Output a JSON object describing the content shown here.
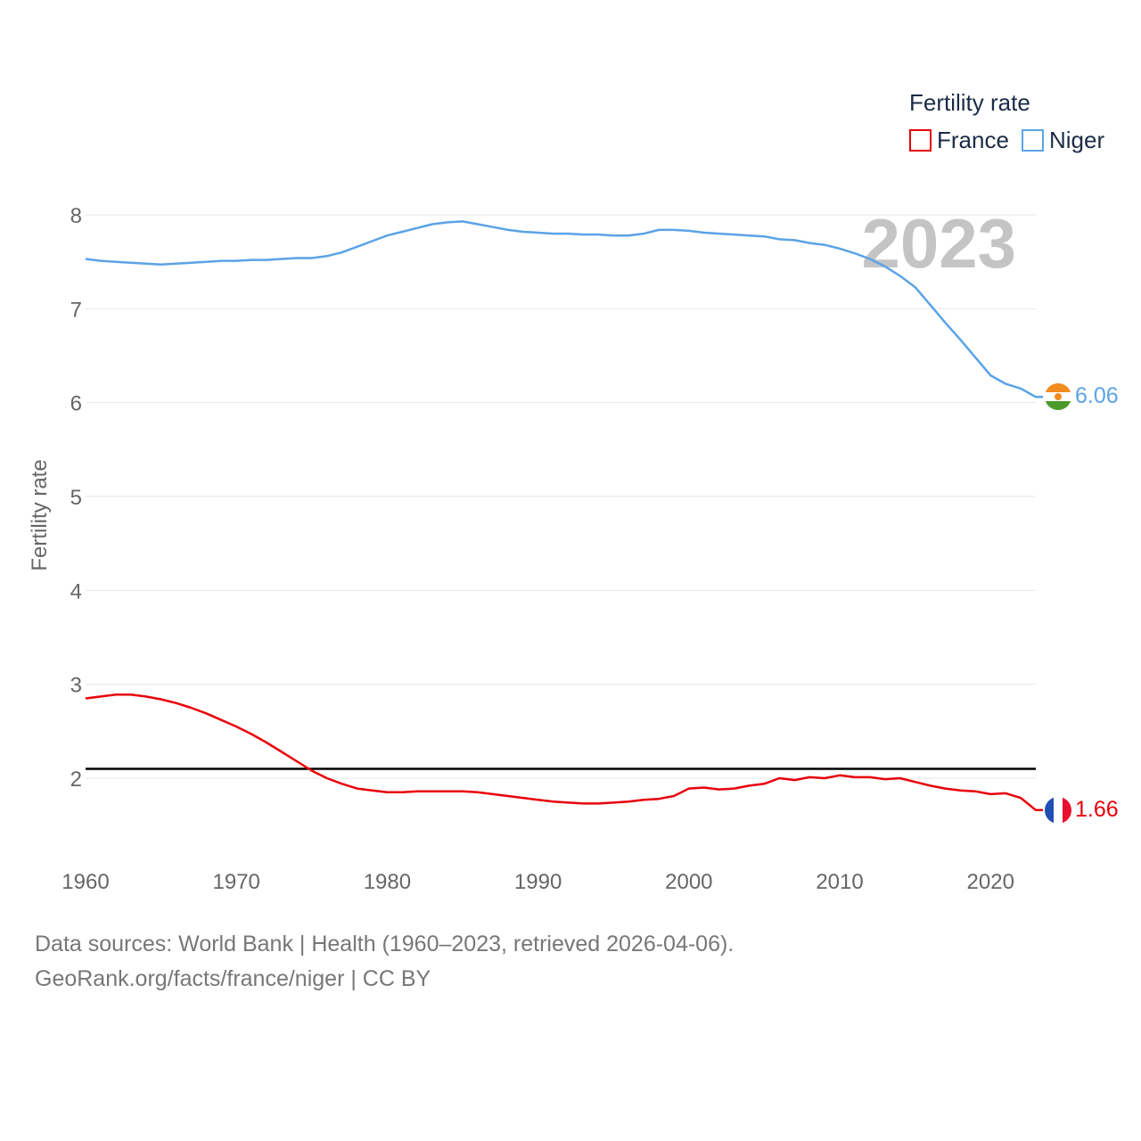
{
  "chart_data": {
    "type": "line",
    "title": "",
    "legend_title": "Fertility rate",
    "ylabel": "Fertility rate",
    "xlabel": "",
    "watermark_year": "2023",
    "x": [
      1960,
      1961,
      1962,
      1963,
      1964,
      1965,
      1966,
      1967,
      1968,
      1969,
      1970,
      1971,
      1972,
      1973,
      1974,
      1975,
      1976,
      1977,
      1978,
      1979,
      1980,
      1981,
      1982,
      1983,
      1984,
      1985,
      1986,
      1987,
      1988,
      1989,
      1990,
      1991,
      1992,
      1993,
      1994,
      1995,
      1996,
      1997,
      1998,
      1999,
      2000,
      2001,
      2002,
      2003,
      2004,
      2005,
      2006,
      2007,
      2008,
      2009,
      2010,
      2011,
      2012,
      2013,
      2014,
      2015,
      2016,
      2017,
      2018,
      2019,
      2020,
      2021,
      2022,
      2023
    ],
    "series": [
      {
        "name": "France",
        "color": "#e8000b",
        "end_label": "1.66",
        "flag": "france-flag",
        "values": [
          2.85,
          2.87,
          2.89,
          2.89,
          2.87,
          2.84,
          2.8,
          2.75,
          2.69,
          2.62,
          2.55,
          2.47,
          2.38,
          2.28,
          2.18,
          2.08,
          2.0,
          1.94,
          1.89,
          1.87,
          1.85,
          1.85,
          1.86,
          1.86,
          1.86,
          1.86,
          1.85,
          1.83,
          1.81,
          1.79,
          1.77,
          1.75,
          1.74,
          1.73,
          1.73,
          1.74,
          1.75,
          1.77,
          1.78,
          1.81,
          1.89,
          1.9,
          1.88,
          1.89,
          1.92,
          1.94,
          2.0,
          1.98,
          2.01,
          2.0,
          2.03,
          2.01,
          2.01,
          1.99,
          2.0,
          1.96,
          1.92,
          1.89,
          1.87,
          1.86,
          1.83,
          1.84,
          1.79,
          1.66
        ]
      },
      {
        "name": "Niger",
        "color": "#5ba3e6",
        "end_label": "6.06",
        "flag": "niger-flag",
        "values": [
          7.53,
          7.51,
          7.5,
          7.49,
          7.48,
          7.47,
          7.48,
          7.49,
          7.5,
          7.51,
          7.51,
          7.52,
          7.52,
          7.53,
          7.54,
          7.54,
          7.56,
          7.6,
          7.66,
          7.72,
          7.78,
          7.82,
          7.86,
          7.9,
          7.92,
          7.93,
          7.9,
          7.87,
          7.84,
          7.82,
          7.81,
          7.8,
          7.8,
          7.79,
          7.79,
          7.78,
          7.78,
          7.8,
          7.84,
          7.84,
          7.83,
          7.81,
          7.8,
          7.79,
          7.78,
          7.77,
          7.74,
          7.73,
          7.7,
          7.68,
          7.64,
          7.59,
          7.53,
          7.45,
          7.35,
          7.23,
          7.04,
          6.85,
          6.67,
          6.48,
          6.29,
          6.2,
          6.15,
          6.06
        ]
      }
    ],
    "reference_line": {
      "value": 2.1,
      "color": "#000000"
    },
    "xlim": [
      1960,
      2023
    ],
    "ylim": [
      1.25,
      8.3
    ],
    "x_ticks": [
      1960,
      1970,
      1980,
      1990,
      2000,
      2010,
      2020
    ],
    "x_tick_labels": [
      "1960",
      "1970",
      "1980",
      "1990",
      "2000",
      "2010",
      "2020"
    ],
    "y_ticks": [
      2,
      3,
      4,
      5,
      6,
      7,
      8
    ],
    "y_tick_labels": [
      "2",
      "3",
      "4",
      "5",
      "6",
      "7",
      "8"
    ],
    "grid": true,
    "legend_position": "top-right"
  },
  "footer": {
    "line1": "Data sources: World Bank | Health (1960–2023, retrieved 2026-04-06).",
    "line2": "GeoRank.org/facts/france/niger | CC BY"
  }
}
